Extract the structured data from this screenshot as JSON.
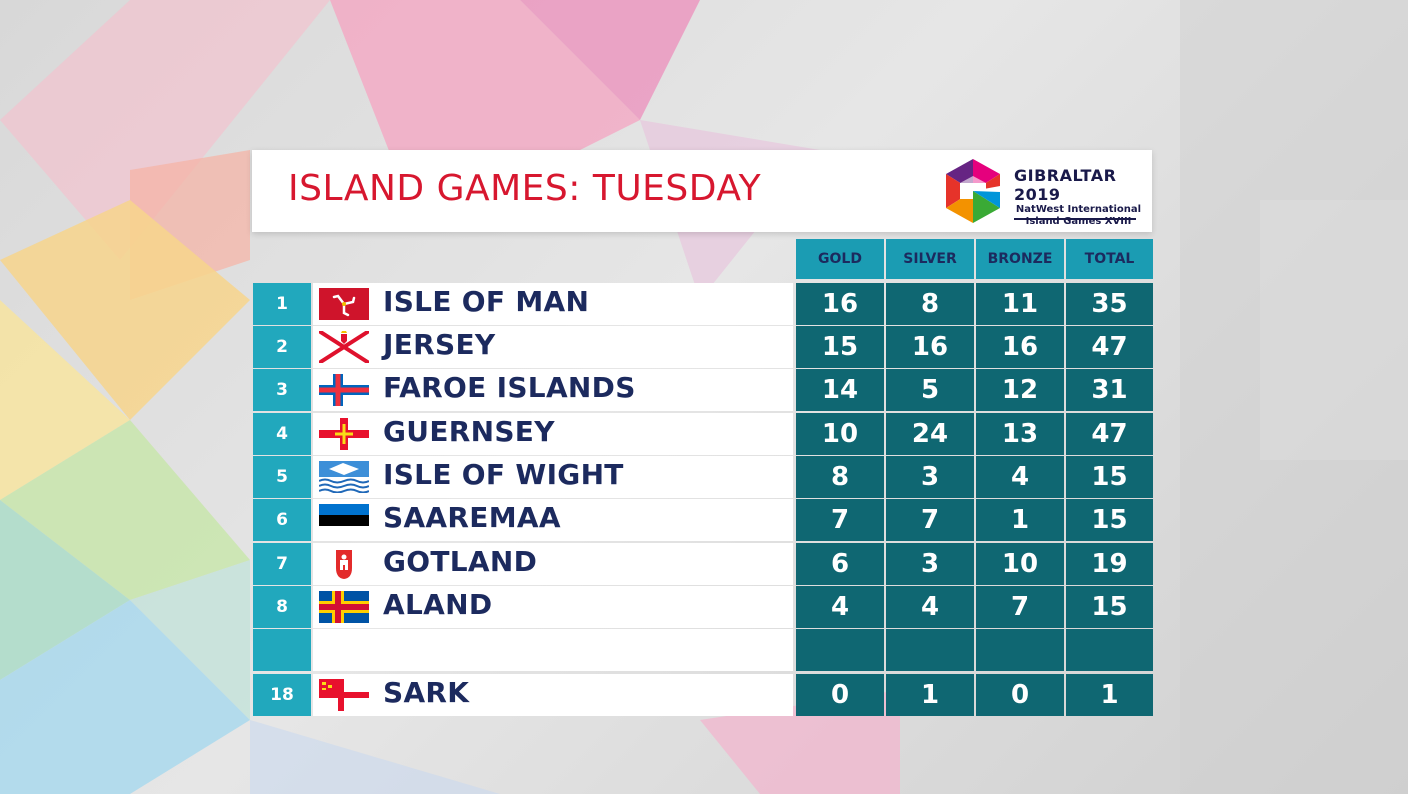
{
  "title": "ISLAND GAMES: TUESDAY",
  "logo": {
    "line1": "GIBRALTAR 2019",
    "line2": "NatWest International",
    "line3": "Island Games XVIII",
    "colors": [
      "#e6332a",
      "#f39200",
      "#ffde00",
      "#3aaa35",
      "#0095d9",
      "#662483",
      "#e5007d"
    ]
  },
  "columns": [
    "GOLD",
    "SILVER",
    "BRONZE",
    "TOTAL"
  ],
  "colors": {
    "title_red": "#d7172f",
    "header_teal": "#1b9cb3",
    "rank_teal": "#21a8bd",
    "value_teal": "#0f6772",
    "navy_text": "#1c2a5e"
  },
  "rows": [
    {
      "rank": "1",
      "flag": "isle-of-man-flag",
      "name": "ISLE OF MAN",
      "gold": "16",
      "silver": "8",
      "bronze": "11",
      "total": "35"
    },
    {
      "rank": "2",
      "flag": "jersey-flag",
      "name": "JERSEY",
      "gold": "15",
      "silver": "16",
      "bronze": "16",
      "total": "47"
    },
    {
      "rank": "3",
      "flag": "faroe-islands-flag",
      "name": "FAROE ISLANDS",
      "gold": "14",
      "silver": "5",
      "bronze": "12",
      "total": "31"
    },
    {
      "rank": "4",
      "flag": "guernsey-flag",
      "name": "GUERNSEY",
      "gold": "10",
      "silver": "24",
      "bronze": "13",
      "total": "47"
    },
    {
      "rank": "5",
      "flag": "isle-of-wight-flag",
      "name": "ISLE OF WIGHT",
      "gold": "8",
      "silver": "3",
      "bronze": "4",
      "total": "15"
    },
    {
      "rank": "6",
      "flag": "saaremaa-flag",
      "name": "SAAREMAA",
      "gold": "7",
      "silver": "7",
      "bronze": "1",
      "total": "15"
    },
    {
      "rank": "7",
      "flag": "gotland-flag",
      "name": "GOTLAND",
      "gold": "6",
      "silver": "3",
      "bronze": "10",
      "total": "19"
    },
    {
      "rank": "8",
      "flag": "aland-flag",
      "name": "ALAND",
      "gold": "4",
      "silver": "4",
      "bronze": "7",
      "total": "15"
    },
    {
      "rank": "",
      "flag": "",
      "name": "",
      "gold": "",
      "silver": "",
      "bronze": "",
      "total": ""
    },
    {
      "rank": "18",
      "flag": "sark-flag",
      "name": "SARK",
      "gold": "0",
      "silver": "1",
      "bronze": "0",
      "total": "1"
    }
  ]
}
